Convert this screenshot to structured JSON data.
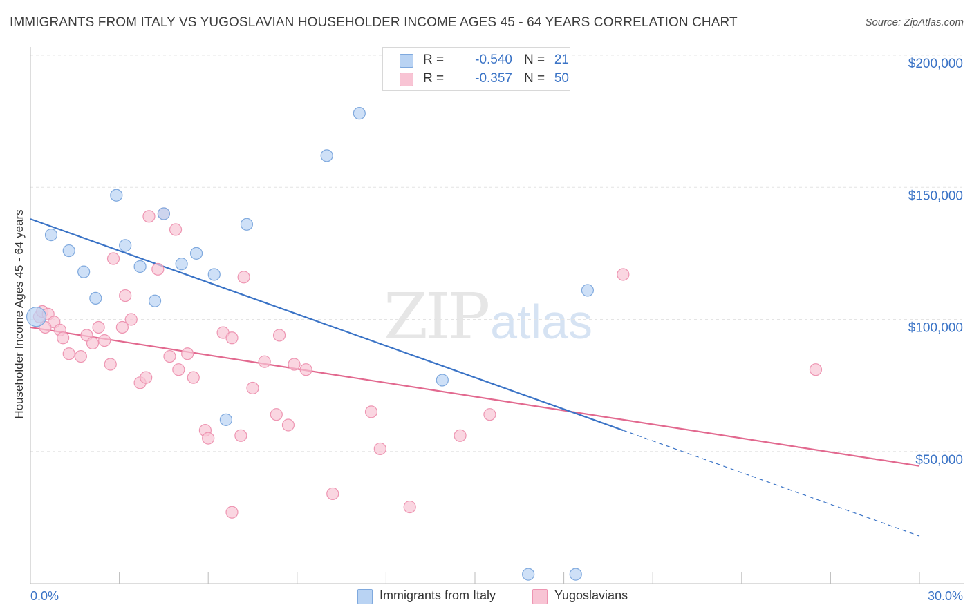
{
  "header": {
    "title": "IMMIGRANTS FROM ITALY VS YUGOSLAVIAN HOUSEHOLDER INCOME AGES 45 - 64 YEARS CORRELATION CHART",
    "source": "Source: ZipAtlas.com"
  },
  "legend": {
    "series": [
      {
        "r_label": "R =",
        "r_value": "-0.540",
        "n_label": "N =",
        "n_value": "21"
      },
      {
        "r_label": "R =",
        "r_value": "-0.357",
        "n_label": "N =",
        "n_value": "50"
      }
    ]
  },
  "watermark": {
    "zip": "ZIP",
    "atlas": "atlas"
  },
  "colors": {
    "italy_fill": "#b9d3f3",
    "italy_stroke": "#7fa9de",
    "italy_line": "#3a73c6",
    "yugo_fill": "#f8c4d4",
    "yugo_stroke": "#ee95b2",
    "yugo_line": "#e2698f",
    "axis_text": "#3a73c6",
    "grid": "#e4e4e4"
  },
  "chart_data": {
    "type": "scatter",
    "title": "IMMIGRANTS FROM ITALY VS YUGOSLAVIAN HOUSEHOLDER INCOME AGES 45 - 64 YEARS CORRELATION CHART",
    "xlabel": "",
    "ylabel": "Householder Income Ages 45 - 64 years",
    "xlim": [
      0,
      30
    ],
    "ylim": [
      0,
      200000
    ],
    "x_tick_labels": [
      "0.0%",
      "30.0%"
    ],
    "y_ticks": [
      50000,
      100000,
      150000,
      200000
    ],
    "y_tick_labels": [
      "$50,000",
      "$100,000",
      "$150,000",
      "$200,000"
    ],
    "grid": true,
    "legend_position": "bottom-center",
    "series": [
      {
        "name": "Immigrants from Italy",
        "r": -0.54,
        "n": 21,
        "points": [
          [
            0.2,
            101000
          ],
          [
            0.7,
            132000
          ],
          [
            1.3,
            126000
          ],
          [
            1.8,
            118000
          ],
          [
            2.2,
            108000
          ],
          [
            2.9,
            147000
          ],
          [
            3.2,
            128000
          ],
          [
            3.7,
            120000
          ],
          [
            4.2,
            107000
          ],
          [
            4.5,
            140000
          ],
          [
            5.1,
            121000
          ],
          [
            5.6,
            125000
          ],
          [
            6.2,
            117000
          ],
          [
            7.3,
            136000
          ],
          [
            10.0,
            162000
          ],
          [
            11.1,
            178000
          ],
          [
            13.9,
            77000
          ],
          [
            6.6,
            62000
          ],
          [
            18.8,
            111000
          ],
          [
            16.8,
            3500
          ],
          [
            18.4,
            3500
          ]
        ],
        "trend": {
          "x0": 0,
          "y0": 138000,
          "x1": 20.0,
          "y1": 58000,
          "dash_to_x": 30,
          "dash_to_y": 18000
        }
      },
      {
        "name": "Yugoslavians",
        "r": -0.357,
        "n": 50,
        "points": [
          [
            0.3,
            101000
          ],
          [
            0.4,
            103000
          ],
          [
            0.6,
            102000
          ],
          [
            0.8,
            99000
          ],
          [
            1.0,
            96000
          ],
          [
            1.1,
            93000
          ],
          [
            1.3,
            87000
          ],
          [
            1.7,
            86000
          ],
          [
            1.9,
            94000
          ],
          [
            2.1,
            91000
          ],
          [
            2.3,
            97000
          ],
          [
            2.5,
            92000
          ],
          [
            2.7,
            83000
          ],
          [
            2.8,
            123000
          ],
          [
            3.1,
            97000
          ],
          [
            3.2,
            109000
          ],
          [
            3.4,
            100000
          ],
          [
            3.7,
            76000
          ],
          [
            3.9,
            78000
          ],
          [
            4.0,
            139000
          ],
          [
            4.3,
            119000
          ],
          [
            4.5,
            140000
          ],
          [
            4.7,
            86000
          ],
          [
            4.9,
            134000
          ],
          [
            5.0,
            81000
          ],
          [
            5.3,
            87000
          ],
          [
            5.5,
            78000
          ],
          [
            5.9,
            58000
          ],
          [
            6.0,
            55000
          ],
          [
            6.5,
            95000
          ],
          [
            6.8,
            93000
          ],
          [
            7.1,
            56000
          ],
          [
            7.2,
            116000
          ],
          [
            7.5,
            74000
          ],
          [
            7.9,
            84000
          ],
          [
            8.3,
            64000
          ],
          [
            8.4,
            94000
          ],
          [
            8.7,
            60000
          ],
          [
            8.9,
            83000
          ],
          [
            9.3,
            81000
          ],
          [
            10.2,
            34000
          ],
          [
            11.5,
            65000
          ],
          [
            11.8,
            51000
          ],
          [
            12.8,
            29000
          ],
          [
            14.5,
            56000
          ],
          [
            15.5,
            64000
          ],
          [
            20.0,
            117000
          ],
          [
            26.5,
            81000
          ],
          [
            6.8,
            27000
          ],
          [
            0.5,
            97000
          ]
        ],
        "trend": {
          "x0": 0,
          "y0": 97000,
          "x1": 30,
          "y1": 44500
        }
      }
    ]
  }
}
